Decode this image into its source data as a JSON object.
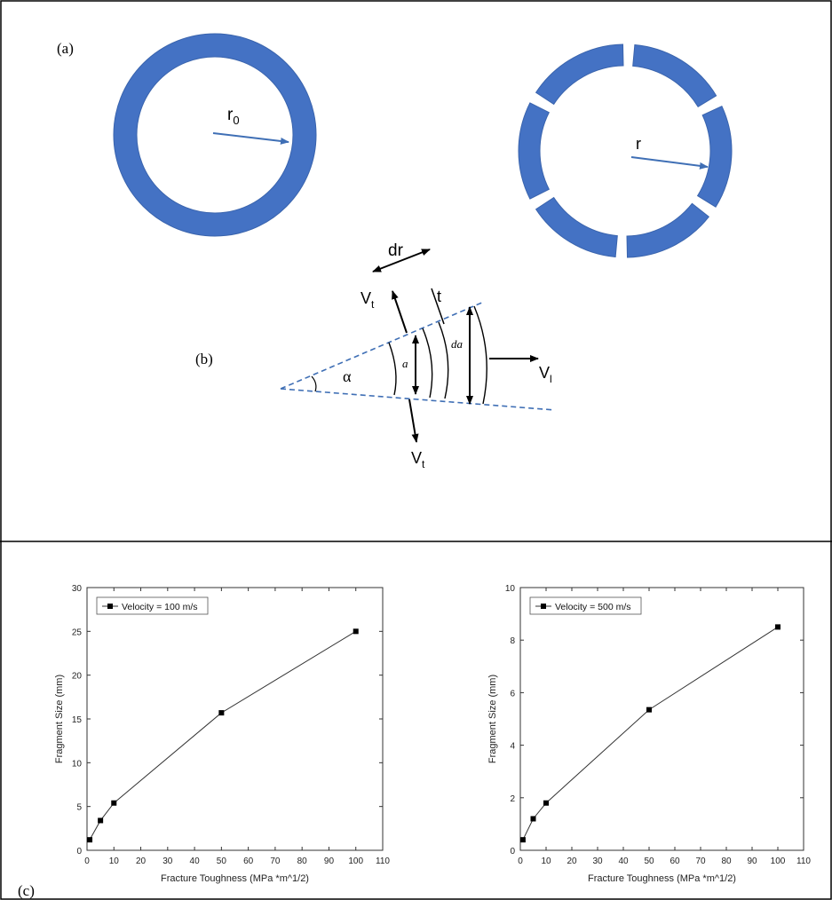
{
  "panels": {
    "a_label": "(a)",
    "b_label": "(b)",
    "c_label": "(c)"
  },
  "ring_intact": {
    "radius_label": "r",
    "radius_sub": "0"
  },
  "ring_fragmented": {
    "radius_label": "r"
  },
  "wedge": {
    "dr_label": "dr",
    "t_label": "t",
    "vt_top_label": "V",
    "vt_top_sub": "t",
    "vt_bottom_label": "V",
    "vt_bottom_sub": "t",
    "vl_label": "V",
    "vl_sub": "l",
    "alpha_label": "α",
    "a_label": "a",
    "da_label": "da"
  },
  "colors": {
    "ring": "#4472C4",
    "ring_edge": "#3a64ad",
    "arrow": "#3f6fb5",
    "line": "#333333",
    "marker": "#000000"
  },
  "chart_data": [
    {
      "type": "line",
      "x": [
        1,
        5,
        10,
        50,
        100
      ],
      "values": [
        1.2,
        3.4,
        5.4,
        15.7,
        25.0
      ],
      "series": [
        {
          "name": "Velocity = 100 m/s",
          "values": [
            1.2,
            3.4,
            5.4,
            15.7,
            25.0
          ]
        }
      ],
      "xlabel": "Fracture Toughness (MPa *m^1/2)",
      "ylabel": "Fragment Size (mm)",
      "xlim": [
        0,
        110
      ],
      "ylim": [
        0,
        30
      ],
      "xticks": [
        "0",
        "10",
        "20",
        "30",
        "40",
        "50",
        "60",
        "70",
        "80",
        "90",
        "100",
        "110"
      ],
      "yticks": [
        "0",
        "5",
        "10",
        "15",
        "20",
        "25",
        "30"
      ],
      "legend": "top-left",
      "grid": false
    },
    {
      "type": "line",
      "x": [
        1,
        5,
        10,
        50,
        100
      ],
      "values": [
        0.4,
        1.2,
        1.8,
        5.35,
        8.5
      ],
      "series": [
        {
          "name": "Velocity = 500 m/s",
          "values": [
            0.4,
            1.2,
            1.8,
            5.35,
            8.5
          ]
        }
      ],
      "xlabel": "Fracture Toughness (MPa *m^1/2)",
      "ylabel": "Fragment Size (mm)",
      "xlim": [
        0,
        110
      ],
      "ylim": [
        0,
        10
      ],
      "xticks": [
        "0",
        "10",
        "20",
        "30",
        "40",
        "50",
        "60",
        "70",
        "80",
        "90",
        "100",
        "110"
      ],
      "yticks": [
        "0",
        "2",
        "4",
        "6",
        "8",
        "10"
      ],
      "legend": "top-left",
      "grid": false
    }
  ]
}
